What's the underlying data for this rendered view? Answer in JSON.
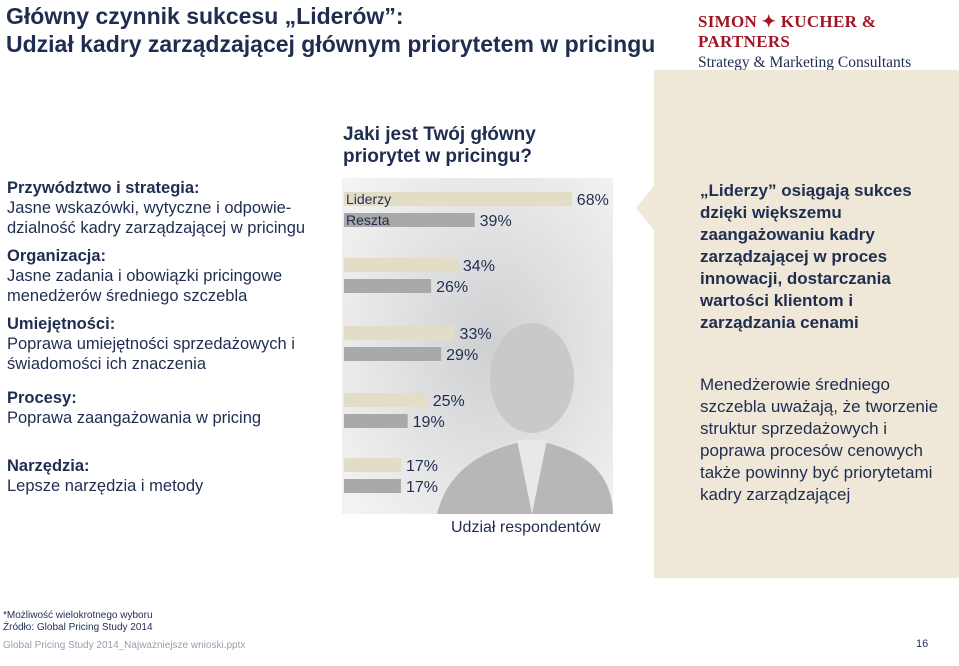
{
  "header": {
    "title_line1": "Główny czynnik sukcesu „Liderów”:",
    "title_line2": "Udział kadry zarządzającej głównym priorytetem w pricingu",
    "brand_name": "SIMON ✦ KUCHER & PARTNERS",
    "brand_tagline": "Strategy & Marketing Consultants"
  },
  "categories": [
    {
      "heading": "Przywództwo i strategia:",
      "text": "Jasne wskazówki, wytyczne i odpowie-dzialność kadry zarządzającej w pricingu"
    },
    {
      "heading": "Organizacja:",
      "text": "Jasne zadania i obowiązki pricingowe menedżerów średniego szczebla"
    },
    {
      "heading": "Umiejętności:",
      "text": "Poprawa umiejętności sprzedażowych i świadomości ich znaczenia"
    },
    {
      "heading": "Procesy:",
      "text": "Poprawa zaangażowania w pricing"
    },
    {
      "heading": "Narzędzia:",
      "text": "Lepsze narzędzia i metody"
    }
  ],
  "question": "Jaki jest Twój główny priorytet w pricingu?",
  "chart_data": {
    "type": "bar",
    "orientation": "horizontal",
    "categories": [
      "Przywództwo i strategia",
      "Organizacja",
      "Umiejętności",
      "Procesy",
      "Narzędzia"
    ],
    "series": [
      {
        "name": "Liderzy",
        "values": [
          68,
          34,
          33,
          25,
          17
        ],
        "color": "#e3dcc6"
      },
      {
        "name": "Reszta",
        "values": [
          39,
          26,
          29,
          19,
          17
        ],
        "color": "#a9a9a9"
      }
    ],
    "value_suffix": "%",
    "xlabel": "Udział respondentów",
    "legend_position": "top-left",
    "xlim": [
      0,
      100
    ]
  },
  "right": {
    "headline": "„Liderzy” osiągają sukces dzięki większemu zaangażowaniu kadry zarządzającej w proces innowacji, dostarczania wartości klientom i zarządzania cenami",
    "body": "Menedżerowie średniego szczebla uważają, że tworzenie struktur sprzedażowych i poprawa procesów cenowych także powinny być priorytetami kadry zarządzającej"
  },
  "footer": {
    "note": "*Możliwość wielokrotnego wyboru",
    "source": "Źródło: Global Pricing Study 2014",
    "file": "Global Pricing Study 2014_Najważniejsze wnioski.pptx",
    "page": "16"
  }
}
